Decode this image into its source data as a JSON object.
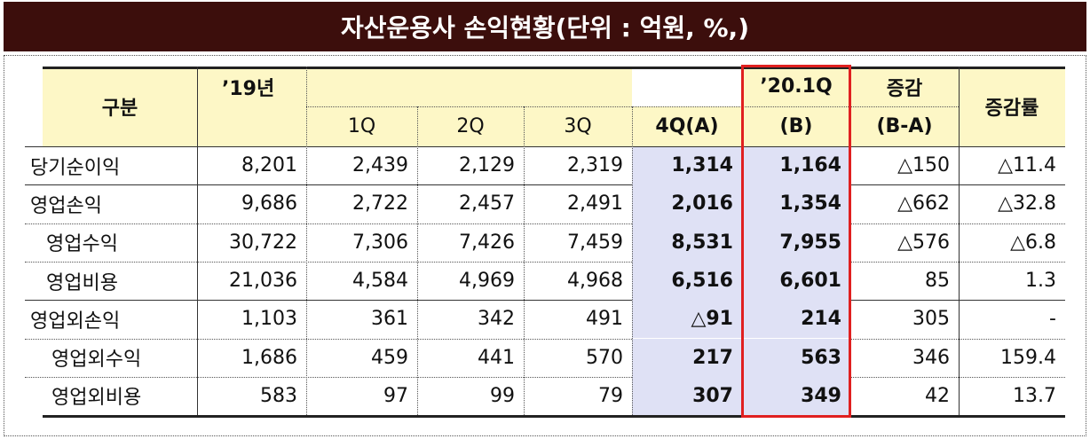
{
  "title": "자산운용사 손익현황(단위 : 억원, %,)",
  "table": {
    "header": {
      "item": "구분",
      "year19": "’19년",
      "quarters": [
        "1Q",
        "2Q",
        "3Q",
        "4Q(A)"
      ],
      "q20": [
        "’20.1Q",
        "(B)"
      ],
      "change": [
        "증감",
        "(B-A)"
      ],
      "rate": "증감률"
    },
    "rows": [
      [
        "당기순이익",
        "8,201",
        "2,439",
        "2,129",
        "2,319",
        "1,314",
        "1,164",
        "△150",
        "△11.4"
      ],
      [
        "영업손익",
        "9,686",
        "2,722",
        "2,457",
        "2,491",
        "2,016",
        "1,354",
        "△662",
        "△32.8"
      ],
      [
        "영업수익",
        "30,722",
        "7,306",
        "7,426",
        "7,459",
        "8,531",
        "7,955",
        "△576",
        "△6.8"
      ],
      [
        "영업비용",
        "21,036",
        "4,584",
        "4,969",
        "4,968",
        "6,516",
        "6,601",
        "85",
        "1.3"
      ],
      [
        "영업외손익",
        "1,103",
        "361",
        "342",
        "491",
        "△91",
        "214",
        "305",
        "-"
      ],
      [
        "영업외수익",
        "1,686",
        "459",
        "441",
        "570",
        "217",
        "563",
        "346",
        "159.4"
      ],
      [
        "영업외비용",
        "583",
        "97",
        "99",
        "79",
        "307",
        "349",
        "42",
        "13.7"
      ]
    ]
  }
}
